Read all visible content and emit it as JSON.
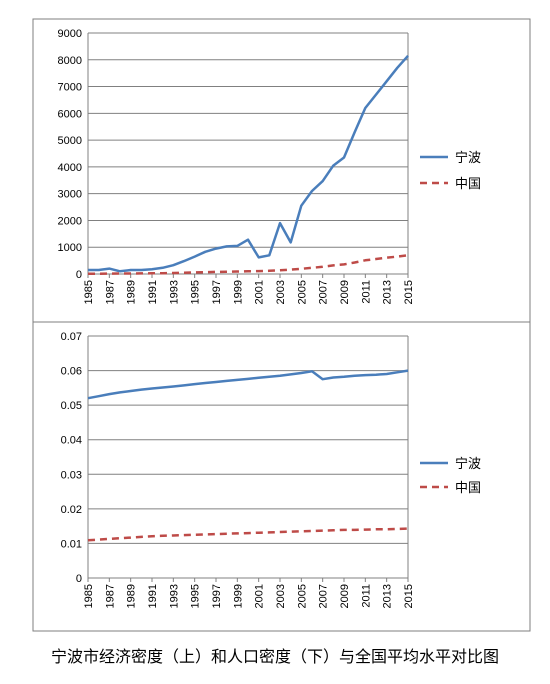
{
  "caption": "宁波市经济密度（上）和人口密度（下）与全国平均水平对比图",
  "colors": {
    "ningbo": "#4a7ebb",
    "china": "#be4b48",
    "grid": "#808080",
    "border": "#7f7f7f"
  },
  "chart_data": [
    {
      "type": "line",
      "ylim": [
        0,
        9000
      ],
      "yticks": [
        "0",
        "1000",
        "2000",
        "3000",
        "4000",
        "5000",
        "6000",
        "7000",
        "8000",
        "9000"
      ],
      "xticks": [
        "1985",
        "1987",
        "1989",
        "1991",
        "1993",
        "1995",
        "1997",
        "1999",
        "2001",
        "2003",
        "2005",
        "2007",
        "2009",
        "2011",
        "2013",
        "2015"
      ],
      "x": [
        1985,
        1986,
        1987,
        1988,
        1989,
        1990,
        1991,
        1992,
        1993,
        1994,
        1995,
        1996,
        1997,
        1998,
        1999,
        2000,
        2001,
        2002,
        2003,
        2004,
        2005,
        2006,
        2007,
        2008,
        2009,
        2010,
        2011,
        2012,
        2013,
        2014,
        2015
      ],
      "series": [
        {
          "name": "宁波",
          "style": "solid",
          "values": [
            150,
            150,
            200,
            100,
            150,
            150,
            180,
            230,
            330,
            480,
            650,
            830,
            950,
            1030,
            1050,
            1280,
            620,
            700,
            1900,
            1180,
            2550,
            3100,
            3470,
            4050,
            4350,
            5300,
            6200,
            6700,
            7200,
            7700,
            8150
          ]
        },
        {
          "name": "中国",
          "style": "dashed",
          "values": [
            10,
            12,
            15,
            18,
            20,
            22,
            25,
            30,
            38,
            48,
            58,
            68,
            78,
            85,
            92,
            100,
            110,
            120,
            140,
            165,
            195,
            230,
            270,
            320,
            360,
            430,
            510,
            560,
            610,
            650,
            700
          ]
        }
      ]
    },
    {
      "type": "line",
      "ylim": [
        0,
        0.07
      ],
      "yticks": [
        "0",
        "0.01",
        "0.02",
        "0.03",
        "0.04",
        "0.05",
        "0.06",
        "0.07"
      ],
      "xticks": [
        "1985",
        "1987",
        "1989",
        "1991",
        "1993",
        "1995",
        "1997",
        "1999",
        "2001",
        "2003",
        "2005",
        "2007",
        "2009",
        "2011",
        "2013",
        "2015"
      ],
      "x": [
        1985,
        1986,
        1987,
        1988,
        1989,
        1990,
        1991,
        1992,
        1993,
        1994,
        1995,
        1996,
        1997,
        1998,
        1999,
        2000,
        2001,
        2002,
        2003,
        2004,
        2005,
        2006,
        2007,
        2008,
        2009,
        2010,
        2011,
        2012,
        2013,
        2014,
        2015
      ],
      "series": [
        {
          "name": "宁波",
          "style": "solid",
          "values": [
            0.052,
            0.0526,
            0.0532,
            0.0537,
            0.0541,
            0.0545,
            0.0548,
            0.0551,
            0.0554,
            0.0557,
            0.0561,
            0.0564,
            0.0567,
            0.057,
            0.0573,
            0.0576,
            0.0579,
            0.0582,
            0.0585,
            0.0589,
            0.0593,
            0.0598,
            0.0575,
            0.058,
            0.0582,
            0.0585,
            0.0587,
            0.0588,
            0.059,
            0.0595,
            0.06
          ]
        },
        {
          "name": "中国",
          "style": "dashed",
          "values": [
            0.0109,
            0.0111,
            0.0113,
            0.0115,
            0.0117,
            0.0119,
            0.0121,
            0.0122,
            0.0123,
            0.0124,
            0.0125,
            0.0126,
            0.0127,
            0.0128,
            0.0129,
            0.013,
            0.0131,
            0.0132,
            0.0133,
            0.0134,
            0.0135,
            0.0136,
            0.0137,
            0.0138,
            0.0139,
            0.0139,
            0.014,
            0.0141,
            0.0141,
            0.0142,
            0.0143
          ]
        }
      ]
    }
  ]
}
